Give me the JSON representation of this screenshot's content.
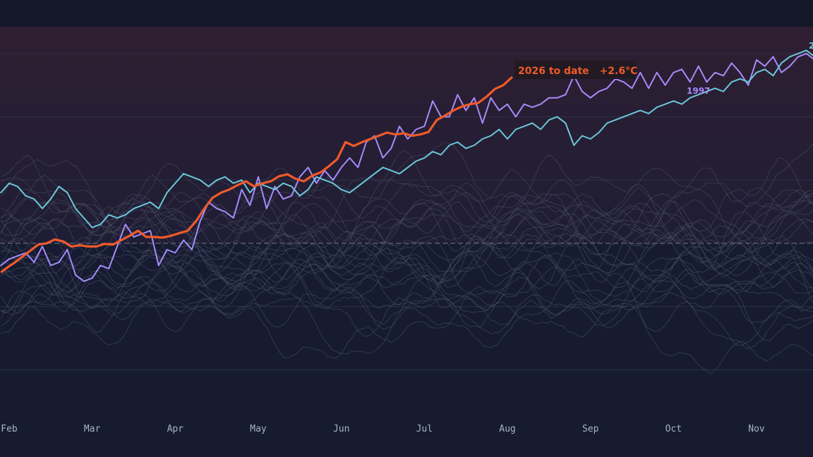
{
  "chart_data": {
    "type": "line",
    "title": "",
    "xlabel": "",
    "ylabel": "",
    "x_axis": {
      "unit": "month",
      "tick_labels": [
        "Feb",
        "Mar",
        "Apr",
        "May",
        "Jun",
        "Jul",
        "Aug",
        "Sep",
        "Oct",
        "Nov"
      ],
      "tick_positions": [
        1.0,
        2.0,
        3.0,
        4.0,
        5.0,
        6.0,
        7.0,
        8.0,
        9.0,
        10.0
      ]
    },
    "y_axis": {
      "unit": "°C anomaly",
      "range": [
        -2.0,
        3.4
      ],
      "baseline": 0
    },
    "grid": {
      "horizontal": true,
      "values": [
        -2.0,
        -1.0,
        1.0,
        2.0,
        3.0
      ]
    },
    "colors": {
      "background": "#161b31",
      "warm_band": "#2a1f35",
      "gridline": "#2b3148",
      "baseline": "#8c93a8",
      "history": "#4b5064",
      "highlight_2026": "#ef5a2a",
      "highlight_1997": "#a78bfa",
      "highlight_cyan": "#6cc7d9",
      "annotation_bg": "#221a22"
    },
    "series": [
      {
        "name": "2026 to date",
        "role": "current",
        "x": [
          0.91,
          0.98,
          1.05,
          1.15,
          1.25,
          1.35,
          1.45,
          1.55,
          1.65,
          1.75,
          1.85,
          1.95,
          2.05,
          2.15,
          2.25,
          2.35,
          2.45,
          2.55,
          2.65,
          2.75,
          2.85,
          2.95,
          3.05,
          3.15,
          3.25,
          3.35,
          3.45,
          3.55,
          3.65,
          3.75,
          3.85,
          3.95,
          4.05,
          4.15,
          4.25,
          4.35,
          4.45,
          4.55,
          4.65,
          4.75,
          4.85,
          4.95,
          5.05,
          5.15,
          5.25,
          5.35,
          5.45,
          5.55,
          5.65,
          5.75,
          5.85,
          5.95,
          6.05,
          6.15,
          6.25,
          6.35,
          6.45,
          6.55,
          6.65,
          6.75,
          6.85,
          6.95,
          7.05
        ],
        "values": [
          -0.45,
          -0.38,
          -0.32,
          -0.22,
          -0.12,
          -0.02,
          0.0,
          0.06,
          0.03,
          -0.05,
          -0.03,
          -0.05,
          -0.05,
          -0.01,
          -0.02,
          0.05,
          0.12,
          0.2,
          0.1,
          0.1,
          0.09,
          0.12,
          0.16,
          0.2,
          0.35,
          0.55,
          0.72,
          0.8,
          0.85,
          0.92,
          0.98,
          0.9,
          0.95,
          0.98,
          1.06,
          1.09,
          1.02,
          0.98,
          1.07,
          1.12,
          1.22,
          1.33,
          1.6,
          1.54,
          1.6,
          1.65,
          1.7,
          1.75,
          1.72,
          1.74,
          1.7,
          1.72,
          1.76,
          1.95,
          2.02,
          2.1,
          2.16,
          2.2,
          2.22,
          2.32,
          2.44,
          2.5,
          2.62
        ]
      },
      {
        "name": "1997",
        "role": "highlight",
        "x": [
          0.9,
          1.0,
          1.1,
          1.2,
          1.3,
          1.4,
          1.5,
          1.6,
          1.7,
          1.8,
          1.9,
          2.0,
          2.1,
          2.2,
          2.3,
          2.4,
          2.5,
          2.6,
          2.7,
          2.8,
          2.9,
          3.0,
          3.1,
          3.2,
          3.3,
          3.4,
          3.5,
          3.6,
          3.7,
          3.8,
          3.9,
          4.0,
          4.1,
          4.2,
          4.3,
          4.4,
          4.5,
          4.6,
          4.7,
          4.8,
          4.9,
          5.0,
          5.1,
          5.2,
          5.3,
          5.4,
          5.5,
          5.6,
          5.7,
          5.8,
          5.9,
          6.0,
          6.1,
          6.2,
          6.3,
          6.4,
          6.5,
          6.6,
          6.7,
          6.8,
          6.9,
          7.0,
          7.1,
          7.2,
          7.3,
          7.4,
          7.5,
          7.6,
          7.7,
          7.8,
          7.9,
          8.0,
          8.1,
          8.2,
          8.3,
          8.4,
          8.5,
          8.6,
          8.7,
          8.8,
          8.9,
          9.0,
          9.1,
          9.2,
          9.3,
          9.4,
          9.5,
          9.6,
          9.7,
          9.8,
          9.9,
          10.0,
          10.1,
          10.2,
          10.3,
          10.4,
          10.5,
          10.6,
          10.7,
          10.8
        ],
        "values": [
          -0.35,
          -0.25,
          -0.2,
          -0.15,
          -0.3,
          -0.05,
          -0.35,
          -0.3,
          -0.1,
          -0.5,
          -0.6,
          -0.55,
          -0.35,
          -0.4,
          -0.05,
          0.3,
          0.1,
          0.15,
          0.2,
          -0.35,
          -0.1,
          -0.15,
          0.05,
          -0.1,
          0.35,
          0.65,
          0.55,
          0.5,
          0.4,
          0.85,
          0.6,
          1.05,
          0.55,
          0.9,
          0.7,
          0.75,
          1.05,
          1.2,
          0.95,
          1.15,
          1.0,
          1.2,
          1.35,
          1.2,
          1.6,
          1.7,
          1.35,
          1.5,
          1.85,
          1.65,
          1.8,
          1.85,
          2.25,
          2.0,
          2.0,
          2.35,
          2.1,
          2.3,
          1.9,
          2.3,
          2.1,
          2.2,
          2.0,
          2.2,
          2.15,
          2.2,
          2.3,
          2.3,
          2.35,
          2.65,
          2.4,
          2.3,
          2.4,
          2.45,
          2.6,
          2.55,
          2.45,
          2.7,
          2.45,
          2.7,
          2.5,
          2.7,
          2.75,
          2.55,
          2.8,
          2.55,
          2.7,
          2.65,
          2.85,
          2.7,
          2.5,
          2.9,
          2.8,
          2.95,
          2.7,
          2.8,
          2.95,
          3.0,
          2.9,
          3.05
        ]
      },
      {
        "name": "2",
        "role": "highlight",
        "x": [
          0.9,
          1.0,
          1.1,
          1.2,
          1.3,
          1.4,
          1.5,
          1.6,
          1.7,
          1.8,
          1.9,
          2.0,
          2.1,
          2.2,
          2.3,
          2.4,
          2.5,
          2.6,
          2.7,
          2.8,
          2.9,
          3.0,
          3.1,
          3.2,
          3.3,
          3.4,
          3.5,
          3.6,
          3.7,
          3.8,
          3.9,
          4.0,
          4.1,
          4.2,
          4.3,
          4.4,
          4.5,
          4.6,
          4.7,
          4.8,
          4.9,
          5.0,
          5.1,
          5.2,
          5.3,
          5.4,
          5.5,
          5.6,
          5.7,
          5.8,
          5.9,
          6.0,
          6.1,
          6.2,
          6.3,
          6.4,
          6.5,
          6.6,
          6.7,
          6.8,
          6.9,
          7.0,
          7.1,
          7.2,
          7.3,
          7.4,
          7.5,
          7.6,
          7.7,
          7.8,
          7.9,
          8.0,
          8.1,
          8.2,
          8.3,
          8.4,
          8.5,
          8.6,
          8.7,
          8.8,
          8.9,
          9.0,
          9.1,
          9.2,
          9.3,
          9.4,
          9.5,
          9.6,
          9.7,
          9.8,
          9.9,
          10.0,
          10.1,
          10.2,
          10.3,
          10.4,
          10.5,
          10.6,
          10.7,
          10.8
        ],
        "values": [
          0.8,
          0.95,
          0.9,
          0.75,
          0.7,
          0.55,
          0.7,
          0.9,
          0.8,
          0.55,
          0.4,
          0.25,
          0.3,
          0.45,
          0.4,
          0.45,
          0.55,
          0.6,
          0.65,
          0.55,
          0.8,
          0.95,
          1.1,
          1.05,
          1.0,
          0.9,
          1.0,
          1.05,
          0.95,
          1.0,
          0.8,
          0.95,
          0.9,
          0.85,
          0.95,
          0.9,
          0.75,
          0.85,
          1.05,
          1.0,
          0.95,
          0.85,
          0.8,
          0.9,
          1.0,
          1.1,
          1.2,
          1.15,
          1.1,
          1.2,
          1.3,
          1.35,
          1.45,
          1.4,
          1.55,
          1.6,
          1.5,
          1.55,
          1.65,
          1.7,
          1.8,
          1.65,
          1.8,
          1.85,
          1.9,
          1.8,
          1.95,
          2.0,
          1.9,
          1.55,
          1.7,
          1.65,
          1.75,
          1.9,
          1.95,
          2.0,
          2.05,
          2.1,
          2.05,
          2.15,
          2.2,
          2.25,
          2.2,
          2.3,
          2.35,
          2.4,
          2.45,
          2.4,
          2.55,
          2.6,
          2.55,
          2.7,
          2.75,
          2.65,
          2.85,
          2.95,
          3.0,
          3.05,
          2.95,
          3.05
        ]
      }
    ],
    "history_series_count": 30,
    "annotations": [
      {
        "text": "2026 to date",
        "series": "2026 to date"
      },
      {
        "text": "+2.6°C",
        "series": "2026 to date"
      },
      {
        "text": "1997",
        "series": "1997"
      },
      {
        "text": "2",
        "series": "2"
      }
    ]
  }
}
